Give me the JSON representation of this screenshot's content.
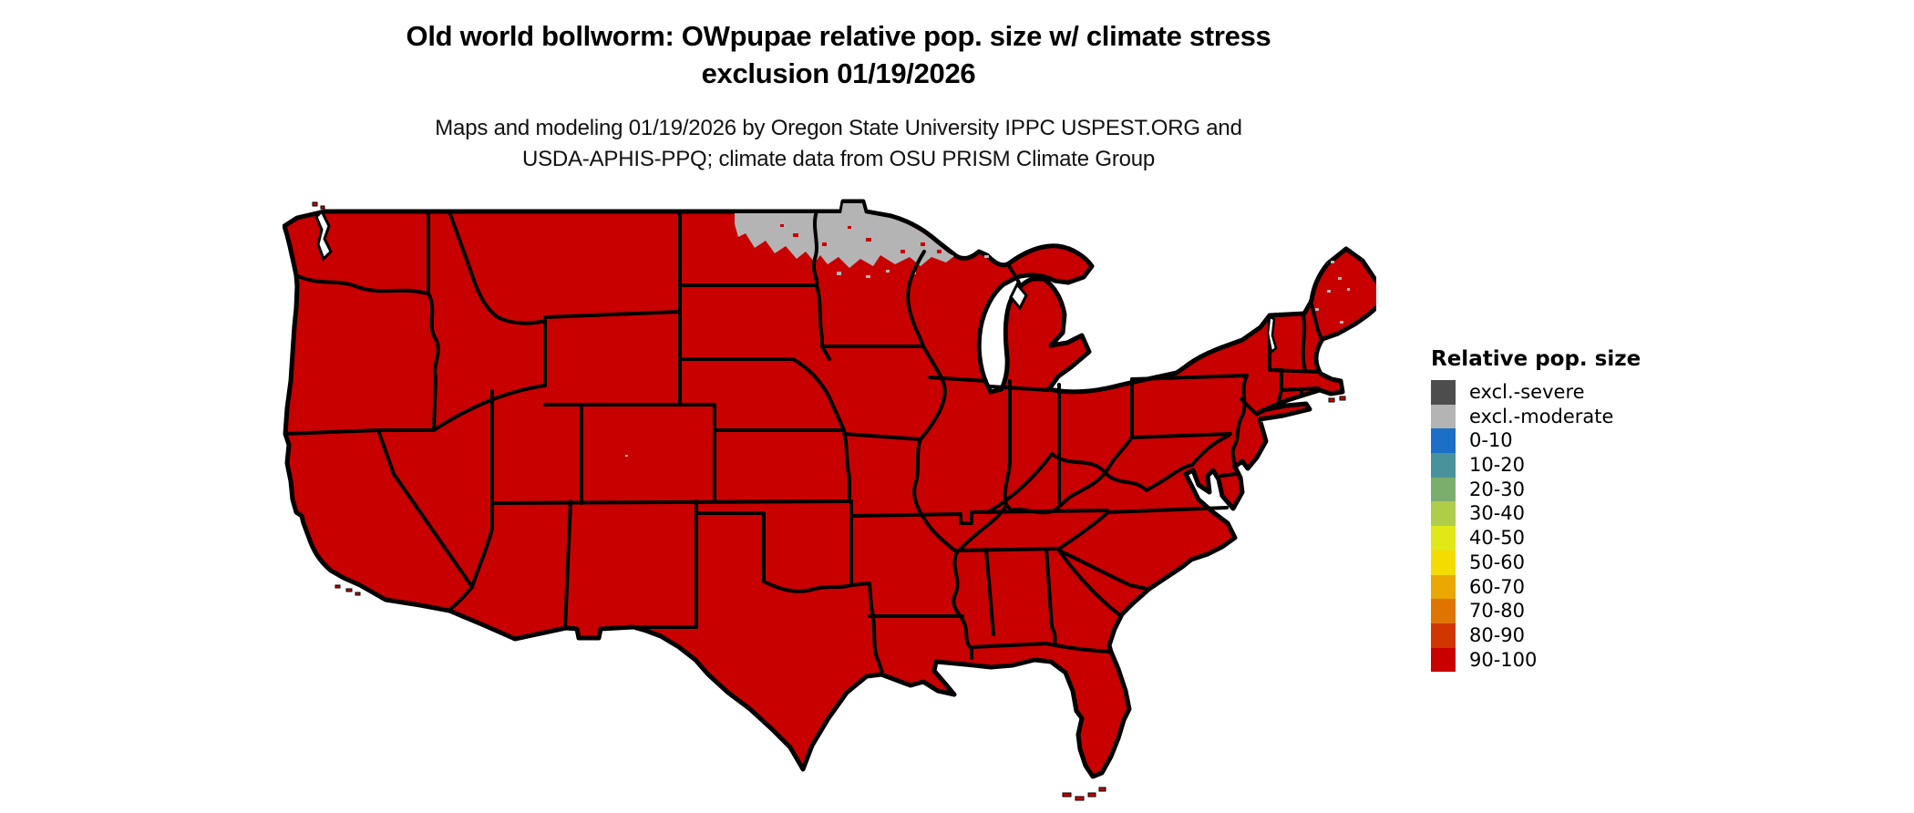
{
  "header": {
    "title_line1": "Old world bollworm: OWpupae relative pop. size w/ climate stress",
    "title_line2": "exclusion 01/19/2026",
    "subtitle_line1": "Maps and modeling 01/19/2026 by Oregon State University IPPC USPEST.ORG and",
    "subtitle_line2": "USDA-APHIS-PPQ; climate data from OSU PRISM Climate Group"
  },
  "legend": {
    "title": "Relative pop. size",
    "entries": [
      {
        "label": "excl.-severe",
        "color": "#4D4D4D"
      },
      {
        "label": "excl.-moderate",
        "color": "#B4B4B4"
      },
      {
        "label": "0-10",
        "color": "#1B6FC7"
      },
      {
        "label": "10-20",
        "color": "#4A929B"
      },
      {
        "label": "20-30",
        "color": "#7BAE6E"
      },
      {
        "label": "30-40",
        "color": "#AFCC4A"
      },
      {
        "label": "40-50",
        "color": "#E0E818"
      },
      {
        "label": "50-60",
        "color": "#F5DC00"
      },
      {
        "label": "60-70",
        "color": "#EAA800"
      },
      {
        "label": "70-80",
        "color": "#E07400"
      },
      {
        "label": "80-90",
        "color": "#D23600"
      },
      {
        "label": "90-100",
        "color": "#C80000"
      }
    ]
  },
  "map": {
    "dominant_class": "90-100",
    "fill_color": "#C80000",
    "exclusion_moderate_color": "#B4B4B4",
    "border_color": "#000000",
    "water_color": "#FFFFFF"
  }
}
